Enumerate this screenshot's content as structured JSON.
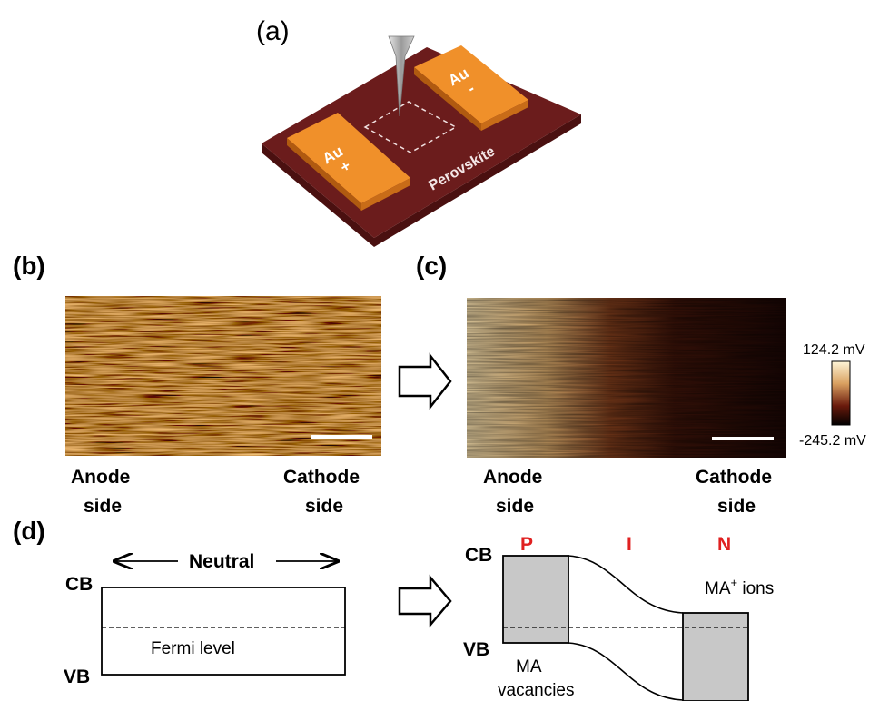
{
  "panels": {
    "a": {
      "label": "(a)",
      "electrode_left": {
        "text": "Au",
        "sign": "+"
      },
      "electrode_right": {
        "text": "Au",
        "sign": "-"
      },
      "substrate_text": "Perovskite"
    },
    "b": {
      "label": "(b)",
      "left_caption": [
        "Anode",
        "side"
      ],
      "right_caption": [
        "Cathode",
        "side"
      ]
    },
    "c": {
      "label": "(c)",
      "left_caption": [
        "Anode",
        "side"
      ],
      "right_caption": [
        "Cathode",
        "side"
      ],
      "colorbar": {
        "max": "124.2 mV",
        "min": "-245.2 mV"
      }
    },
    "d": {
      "label": "(d)",
      "left": {
        "neutral": "Neutral",
        "cb": "CB",
        "vb": "VB",
        "fermi": "Fermi level"
      },
      "right": {
        "cb": "CB",
        "vb": "VB",
        "regions": [
          "P",
          "I",
          "N"
        ],
        "ions_prefix": "MA",
        "ions_sup": "+",
        "ions_suffix": " ions",
        "vacancies": [
          "MA",
          "vacancies"
        ]
      }
    }
  },
  "colors": {
    "substrate": "#6b1c1c",
    "gold": "#f0902a",
    "band_fill": "#c8c8c8",
    "region_labels": "#e02020"
  }
}
